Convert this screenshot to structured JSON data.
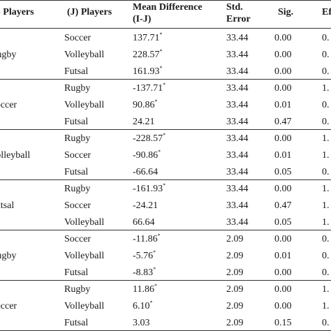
{
  "header": {
    "i_players": "(I) Players",
    "j_players": "(J) Players",
    "mean_diff_line1": "Mean Difference",
    "mean_diff_line2": "(I-J)",
    "std_line1": "Std.",
    "std_line2": "Error",
    "sig": "Sig.",
    "effect": "Ef"
  },
  "groups": [
    {
      "i": "Rugby",
      "rows": [
        {
          "j": "Soccer",
          "diff": "137.71",
          "star": "*",
          "se": "33.44",
          "sig": "0.00",
          "eff": "0."
        },
        {
          "j": "Volleyball",
          "diff": "228.57",
          "star": "*",
          "se": "33.44",
          "sig": "0.00",
          "eff": "0."
        },
        {
          "j": "Futsal",
          "diff": "161.93",
          "star": "*",
          "se": "33.44",
          "sig": "0.00",
          "eff": "0."
        }
      ]
    },
    {
      "i": "Soccer",
      "rows": [
        {
          "j": "Rugby",
          "diff": "-137.71",
          "star": "*",
          "se": "33.44",
          "sig": "0.00",
          "eff": "1."
        },
        {
          "j": "Volleyball",
          "diff": "90.86",
          "star": "*",
          "se": "33.44",
          "sig": "0.01",
          "eff": "0."
        },
        {
          "j": "Futsal",
          "diff": "24.21",
          "star": "",
          "se": "33.44",
          "sig": "0.47",
          "eff": "0."
        }
      ]
    },
    {
      "i": "Volleyball",
      "rows": [
        {
          "j": "Rugby",
          "diff": "-228.57",
          "star": "*",
          "se": "33.44",
          "sig": "0.00",
          "eff": "1."
        },
        {
          "j": "Soccer",
          "diff": "-90.86",
          "star": "*",
          "se": "33.44",
          "sig": "0.01",
          "eff": "1."
        },
        {
          "j": "Futsal",
          "diff": "-66.64",
          "star": "",
          "se": "33.44",
          "sig": "0.05",
          "eff": "0."
        }
      ]
    },
    {
      "i": "Futsal",
      "rows": [
        {
          "j": "Rugby",
          "diff": "-161.93",
          "star": "*",
          "se": "33.44",
          "sig": "0.00",
          "eff": "1."
        },
        {
          "j": "Soccer",
          "diff": "-24.21",
          "star": "",
          "se": "33.44",
          "sig": "0.47",
          "eff": "1."
        },
        {
          "j": "Volleyball",
          "diff": "66.64",
          "star": "",
          "se": "33.44",
          "sig": "0.05",
          "eff": "1."
        }
      ]
    },
    {
      "i": "Rugby",
      "rows": [
        {
          "j": "Soccer",
          "diff": "-11.86",
          "star": "*",
          "se": "2.09",
          "sig": "0.00",
          "eff": "0."
        },
        {
          "j": "Volleyball",
          "diff": "-5.76",
          "star": "*",
          "se": "2.09",
          "sig": "0.01",
          "eff": "0."
        },
        {
          "j": "Futsal",
          "diff": "-8.83",
          "star": "*",
          "se": "2.09",
          "sig": "0.00",
          "eff": "0."
        }
      ]
    },
    {
      "i": "Soccer",
      "rows": [
        {
          "j": "Rugby",
          "diff": "11.86",
          "star": "*",
          "se": "2.09",
          "sig": "0.00",
          "eff": "1."
        },
        {
          "j": "Volleyball",
          "diff": "6.10",
          "star": "*",
          "se": "2.09",
          "sig": "0.00",
          "eff": "1."
        },
        {
          "j": "Futsal",
          "diff": "3.03",
          "star": "",
          "se": "2.09",
          "sig": "0.15",
          "eff": "0."
        }
      ]
    }
  ]
}
